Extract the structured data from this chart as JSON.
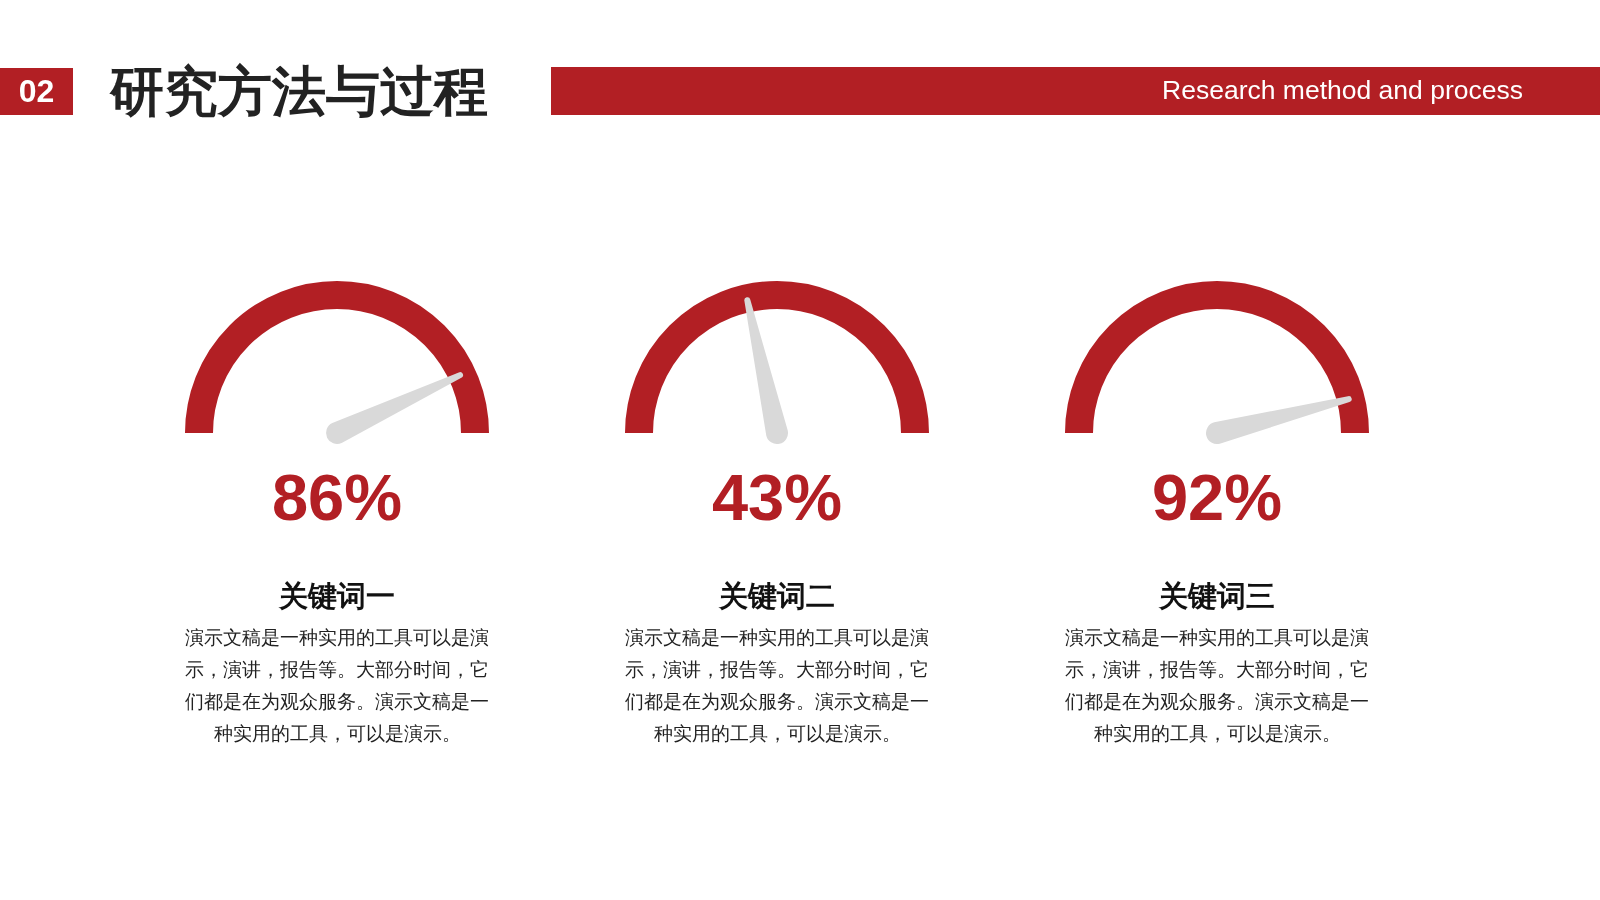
{
  "chart_data": {
    "type": "other",
    "title": "研究方法与过程",
    "subtitle": "Research method and process",
    "categories": [
      "关键词一",
      "关键词二",
      "关键词三"
    ],
    "values": [
      86,
      43,
      92
    ],
    "value_labels": [
      "86%",
      "43%",
      "92%"
    ],
    "color": "#b21f24",
    "annotations": [
      "02",
      "演示文稿是一种实用的工具可以是演示，演讲，报告等。大部分时间，它们都是在为观众服务。演示文稿是一种实用的工具，可以是演示。",
      "演示文稿是一种实用的工具可以是演示，演讲，报告等。大部分时间，它们都是在为观众服务。演示文稿是一种实用的工具，可以是演示。",
      "演示文稿是一种实用的工具可以是演示，演讲，报告等。大部分时间，它们都是在为观众服务。演示文稿是一种实用的工具，可以是演示。"
    ]
  }
}
